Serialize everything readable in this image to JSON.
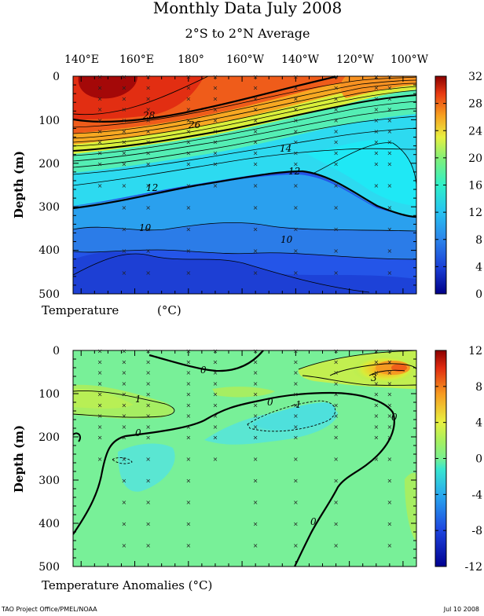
{
  "figure": {
    "title": "Monthly Data July 2008",
    "subtitle": "2°S to 2°N Average",
    "footer_left": "TAO Project Office/PMEL/NOAA",
    "footer_right": "Jul 10 2008"
  },
  "chart_data": [
    {
      "type": "heatmap",
      "panel": "top",
      "xlabel_caption": "Temperature",
      "xlabel_unit": "(°C)",
      "ylabel": "Depth (m)",
      "x_tick_labels": [
        "140°E",
        "160°E",
        "180°",
        "160°W",
        "140°W",
        "120°W",
        "100°W"
      ],
      "x_tick_lon": [
        140,
        160,
        180,
        200,
        220,
        240,
        260
      ],
      "xlim_lon": [
        137,
        265
      ],
      "y_ticks": [
        0,
        100,
        200,
        300,
        400,
        500
      ],
      "ylim": [
        0,
        500
      ],
      "colorbar_ticks": [
        0,
        4,
        8,
        12,
        16,
        20,
        24,
        28,
        32
      ],
      "colorbar_range": [
        0,
        32
      ],
      "contour_interval": 1,
      "bold_contours": [
        12,
        20,
        26
      ],
      "contour_labels": [
        "28",
        "26",
        "14",
        "12",
        "12",
        "10",
        "10"
      ],
      "surface_temp_C_by_lon": {
        "140": 30,
        "160": 30,
        "180": 29.5,
        "200": 29,
        "220": 28,
        "240": 27,
        "260": 25.5
      },
      "thermocline_20C_depth_m_by_lon": {
        "140": 200,
        "160": 190,
        "180": 170,
        "200": 150,
        "220": 120,
        "240": 100,
        "260": 80
      },
      "isotherm_12C_depth_m_by_lon": {
        "140": 265,
        "160": 260,
        "180": 245,
        "200": 225,
        "220": 215,
        "240": 255,
        "260": 325
      }
    },
    {
      "type": "heatmap",
      "panel": "bottom",
      "xlabel": "Temperature Anomalies (°C)",
      "ylabel": "Depth (m)",
      "x_tick_lon": [
        140,
        160,
        180,
        200,
        220,
        240,
        260
      ],
      "xlim_lon": [
        137,
        265
      ],
      "y_ticks": [
        0,
        100,
        200,
        300,
        400,
        500
      ],
      "ylim": [
        0,
        500
      ],
      "colorbar_ticks": [
        12,
        8,
        4,
        0,
        -4,
        -8,
        -12
      ],
      "colorbar_range": [
        -12,
        12
      ],
      "contour_interval": 1,
      "contour_labels": [
        "0",
        "1",
        "0",
        "-1",
        "0",
        "0",
        "-1",
        "3",
        "0",
        "0"
      ],
      "features": [
        {
          "label": "3",
          "lon": 256,
          "depth_m": 55,
          "note": "warm anomaly max near eastern surface"
        },
        {
          "label": "1",
          "lon": 147,
          "depth_m": 120,
          "note": "weak warm anomaly west"
        },
        {
          "label": "-1",
          "lon": 228,
          "depth_m": 135,
          "note": "weak cool anomaly"
        }
      ]
    }
  ]
}
